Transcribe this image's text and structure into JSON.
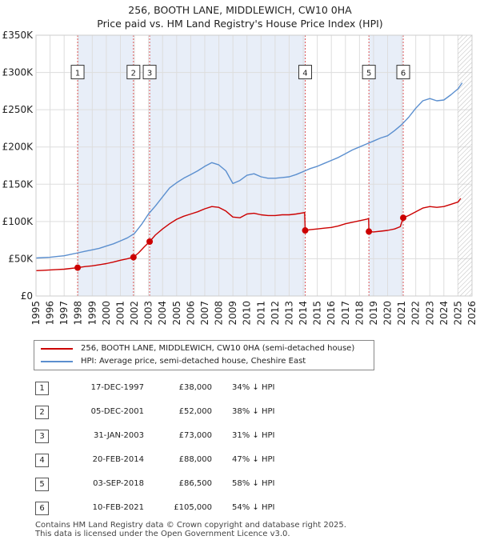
{
  "chart_data": {
    "type": "line",
    "title": "256, BOOTH LANE, MIDDLEWICH, CW10 0HA",
    "subtitle": "Price paid vs. HM Land Registry's House Price Index (HPI)",
    "xlim": [
      1995,
      2026
    ],
    "ylim": [
      0,
      350000
    ],
    "y_ticks": [
      0,
      50000,
      100000,
      150000,
      200000,
      250000,
      300000,
      350000
    ],
    "y_tick_labels": [
      "£0",
      "£50K",
      "£100K",
      "£150K",
      "£200K",
      "£250K",
      "£300K",
      "£350K"
    ],
    "x_ticks": [
      "1995",
      "1996",
      "1997",
      "1998",
      "1999",
      "2000",
      "2001",
      "2002",
      "2003",
      "2004",
      "2005",
      "2006",
      "2007",
      "2008",
      "2009",
      "2010",
      "2011",
      "2012",
      "2013",
      "2014",
      "2015",
      "2016",
      "2017",
      "2018",
      "2019",
      "2020",
      "2021",
      "2022",
      "2023",
      "2024",
      "2025",
      "2026"
    ],
    "series": [
      {
        "name": "256, BOOTH LANE, MIDDLEWICH, CW10 0HA (semi-detached house)",
        "color": "#cc0000",
        "points": [
          [
            1995.0,
            34000
          ],
          [
            1995.5,
            34500
          ],
          [
            1996.0,
            35000
          ],
          [
            1996.5,
            35500
          ],
          [
            1997.0,
            36000
          ],
          [
            1997.5,
            37000
          ],
          [
            1997.96,
            38000
          ],
          [
            1998.5,
            39500
          ],
          [
            1999.0,
            40500
          ],
          [
            1999.5,
            42000
          ],
          [
            2000.0,
            43500
          ],
          [
            2000.5,
            45500
          ],
          [
            2001.0,
            48000
          ],
          [
            2001.5,
            50000
          ],
          [
            2001.93,
            52000
          ],
          [
            2002.3,
            58000
          ],
          [
            2002.7,
            66000
          ],
          [
            2003.08,
            73000
          ],
          [
            2003.5,
            82000
          ],
          [
            2004.0,
            90000
          ],
          [
            2004.5,
            97000
          ],
          [
            2005.0,
            103000
          ],
          [
            2005.5,
            107000
          ],
          [
            2006.0,
            110000
          ],
          [
            2006.5,
            113000
          ],
          [
            2007.0,
            117000
          ],
          [
            2007.5,
            120000
          ],
          [
            2008.0,
            119000
          ],
          [
            2008.5,
            114000
          ],
          [
            2009.0,
            106000
          ],
          [
            2009.5,
            105000
          ],
          [
            2010.0,
            110000
          ],
          [
            2010.5,
            111000
          ],
          [
            2011.0,
            109000
          ],
          [
            2011.5,
            108000
          ],
          [
            2012.0,
            108000
          ],
          [
            2012.5,
            109000
          ],
          [
            2013.0,
            109000
          ],
          [
            2013.5,
            110000
          ],
          [
            2014.1,
            112000
          ],
          [
            2014.14,
            88000
          ],
          [
            2014.5,
            89000
          ],
          [
            2015.0,
            90000
          ],
          [
            2015.5,
            91000
          ],
          [
            2016.0,
            92000
          ],
          [
            2016.5,
            94000
          ],
          [
            2017.0,
            97000
          ],
          [
            2017.5,
            99000
          ],
          [
            2018.0,
            101000
          ],
          [
            2018.5,
            103000
          ],
          [
            2018.65,
            104000
          ],
          [
            2018.67,
            86500
          ],
          [
            2019.0,
            86000
          ],
          [
            2019.5,
            87000
          ],
          [
            2020.0,
            88000
          ],
          [
            2020.5,
            90000
          ],
          [
            2020.9,
            93000
          ],
          [
            2021.11,
            105000
          ],
          [
            2021.5,
            108000
          ],
          [
            2022.0,
            113000
          ],
          [
            2022.5,
            118000
          ],
          [
            2023.0,
            120000
          ],
          [
            2023.5,
            119000
          ],
          [
            2024.0,
            120000
          ],
          [
            2024.5,
            123000
          ],
          [
            2025.0,
            126000
          ],
          [
            2025.2,
            131000
          ]
        ]
      },
      {
        "name": "HPI: Average price, semi-detached house, Cheshire East",
        "color": "#5b8fcf",
        "points": [
          [
            1995.0,
            51000
          ],
          [
            1995.5,
            51500
          ],
          [
            1996.0,
            52000
          ],
          [
            1996.5,
            53000
          ],
          [
            1997.0,
            54000
          ],
          [
            1997.5,
            56000
          ],
          [
            1998.0,
            58000
          ],
          [
            1998.5,
            60000
          ],
          [
            1999.0,
            62000
          ],
          [
            1999.5,
            64000
          ],
          [
            2000.0,
            67000
          ],
          [
            2000.5,
            70000
          ],
          [
            2001.0,
            74000
          ],
          [
            2001.5,
            78000
          ],
          [
            2002.0,
            84000
          ],
          [
            2002.5,
            96000
          ],
          [
            2003.0,
            110000
          ],
          [
            2003.5,
            121000
          ],
          [
            2004.0,
            133000
          ],
          [
            2004.5,
            145000
          ],
          [
            2005.0,
            152000
          ],
          [
            2005.5,
            158000
          ],
          [
            2006.0,
            163000
          ],
          [
            2006.5,
            168000
          ],
          [
            2007.0,
            174000
          ],
          [
            2007.5,
            179000
          ],
          [
            2008.0,
            176000
          ],
          [
            2008.5,
            168000
          ],
          [
            2009.0,
            151000
          ],
          [
            2009.5,
            155000
          ],
          [
            2010.0,
            162000
          ],
          [
            2010.5,
            164000
          ],
          [
            2011.0,
            160000
          ],
          [
            2011.5,
            158000
          ],
          [
            2012.0,
            158000
          ],
          [
            2012.5,
            159000
          ],
          [
            2013.0,
            160000
          ],
          [
            2013.5,
            163000
          ],
          [
            2014.0,
            167000
          ],
          [
            2014.5,
            171000
          ],
          [
            2015.0,
            174000
          ],
          [
            2015.5,
            178000
          ],
          [
            2016.0,
            182000
          ],
          [
            2016.5,
            186000
          ],
          [
            2017.0,
            191000
          ],
          [
            2017.5,
            196000
          ],
          [
            2018.0,
            200000
          ],
          [
            2018.5,
            204000
          ],
          [
            2019.0,
            208000
          ],
          [
            2019.5,
            212000
          ],
          [
            2020.0,
            215000
          ],
          [
            2020.5,
            222000
          ],
          [
            2021.0,
            230000
          ],
          [
            2021.5,
            240000
          ],
          [
            2022.0,
            252000
          ],
          [
            2022.5,
            262000
          ],
          [
            2023.0,
            265000
          ],
          [
            2023.5,
            262000
          ],
          [
            2024.0,
            263000
          ],
          [
            2024.5,
            270000
          ],
          [
            2025.0,
            278000
          ],
          [
            2025.3,
            286000
          ]
        ]
      }
    ],
    "sale_markers": [
      {
        "label": "1",
        "x": 1997.96,
        "y": 38000
      },
      {
        "label": "2",
        "x": 2001.93,
        "y": 52000
      },
      {
        "label": "3",
        "x": 2003.08,
        "y": 73000
      },
      {
        "label": "4",
        "x": 2014.14,
        "y": 88000
      },
      {
        "label": "5",
        "x": 2018.67,
        "y": 86500
      },
      {
        "label": "6",
        "x": 2021.11,
        "y": 105000
      }
    ],
    "shaded_spans": [
      [
        1997.96,
        2001.93
      ],
      [
        2003.08,
        2014.14
      ],
      [
        2018.67,
        2021.11
      ]
    ],
    "hatched_from": 2025.0,
    "marker_label_value": 300000,
    "grid": true
  },
  "legend": {
    "items": [
      {
        "label": "256, BOOTH LANE, MIDDLEWICH, CW10 0HA (semi-detached house)",
        "color": "#cc0000"
      },
      {
        "label": "HPI: Average price, semi-detached house, Cheshire East",
        "color": "#5b8fcf"
      }
    ]
  },
  "sales": [
    {
      "num": "1",
      "date": "17-DEC-1997",
      "price": "£38,000",
      "hpi": "34% ↓ HPI"
    },
    {
      "num": "2",
      "date": "05-DEC-2001",
      "price": "£52,000",
      "hpi": "38% ↓ HPI"
    },
    {
      "num": "3",
      "date": "31-JAN-2003",
      "price": "£73,000",
      "hpi": "31% ↓ HPI"
    },
    {
      "num": "4",
      "date": "20-FEB-2014",
      "price": "£88,000",
      "hpi": "47% ↓ HPI"
    },
    {
      "num": "5",
      "date": "03-SEP-2018",
      "price": "£86,500",
      "hpi": "58% ↓ HPI"
    },
    {
      "num": "6",
      "date": "10-FEB-2021",
      "price": "£105,000",
      "hpi": "54% ↓ HPI"
    }
  ],
  "footer": {
    "line1": "Contains HM Land Registry data © Crown copyright and database right 2025.",
    "line2": "This data is licensed under the Open Government Licence v3.0."
  }
}
